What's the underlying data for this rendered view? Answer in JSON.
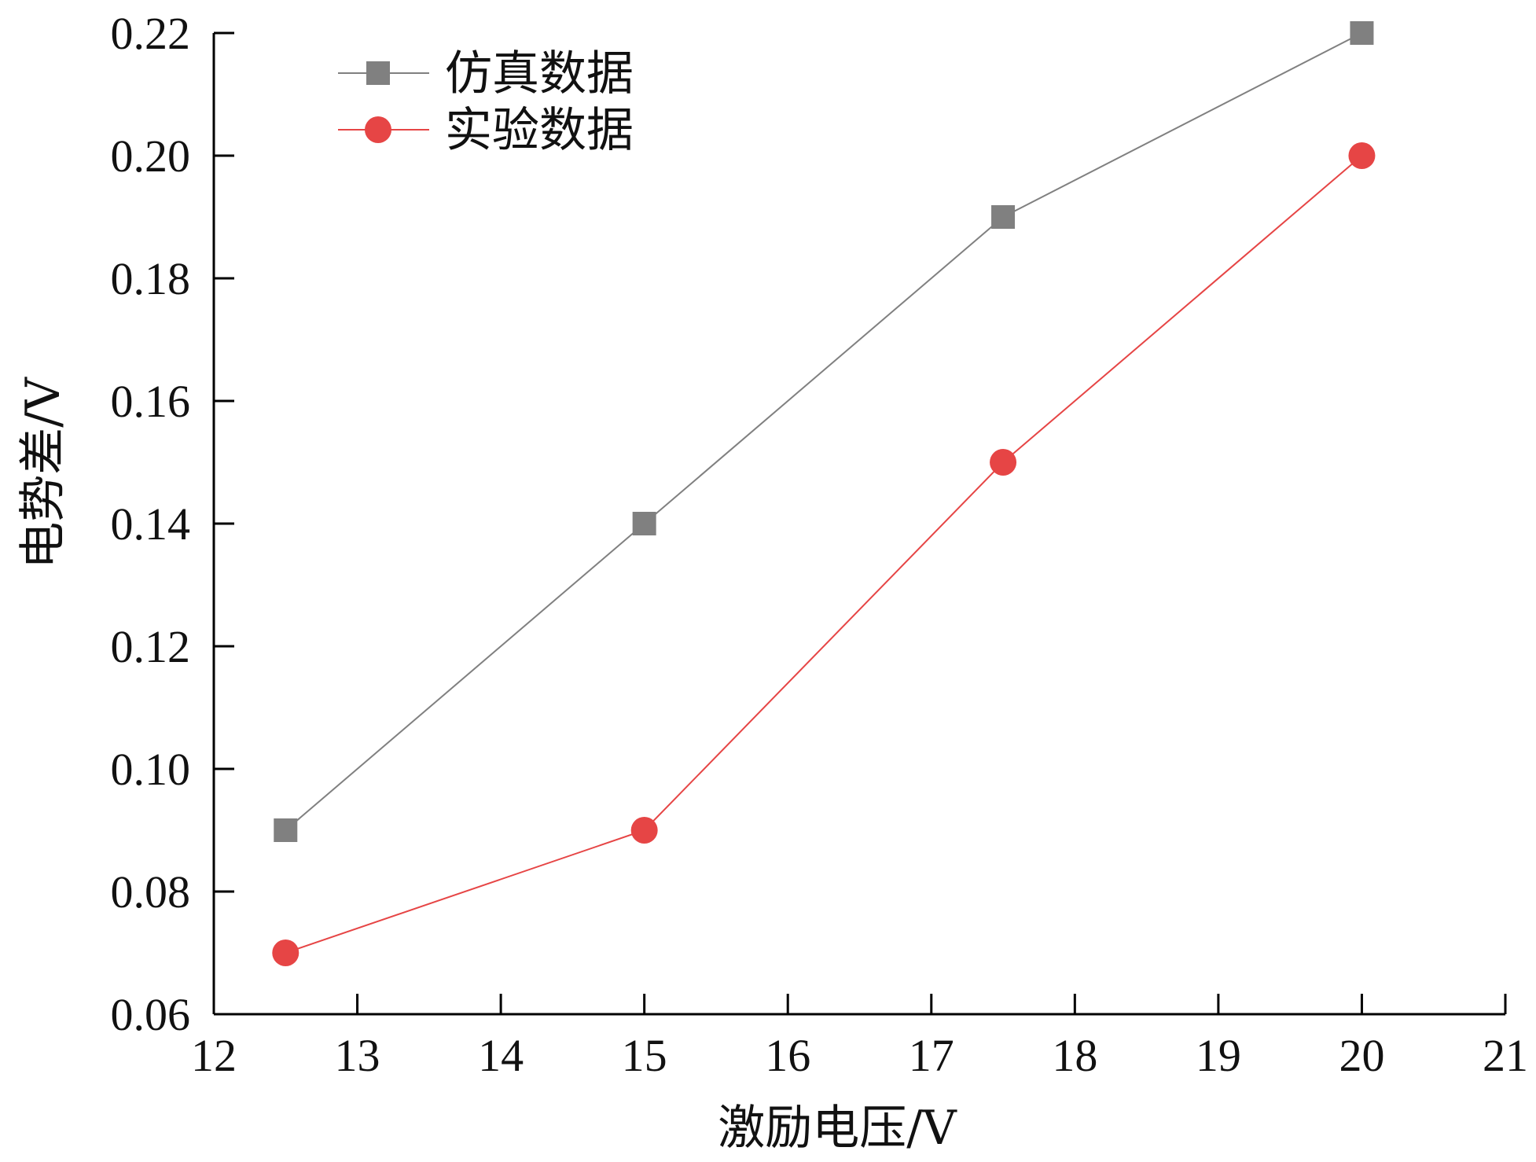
{
  "chart_data": {
    "type": "line",
    "title": "",
    "xlabel": "激励电压/V",
    "ylabel": "电势差/V",
    "xlim": [
      12,
      21
    ],
    "ylim": [
      0.06,
      0.22
    ],
    "xticks": [
      12,
      13,
      14,
      15,
      16,
      17,
      18,
      19,
      20,
      21
    ],
    "xtick_labels": [
      "12",
      "13",
      "14",
      "15",
      "16",
      "17",
      "18",
      "19",
      "20",
      "21"
    ],
    "yticks": [
      0.06,
      0.08,
      0.1,
      0.12,
      0.14,
      0.16,
      0.18,
      0.2,
      0.22
    ],
    "ytick_labels": [
      "0.06",
      "0.08",
      "0.10",
      "0.12",
      "0.14",
      "0.16",
      "0.18",
      "0.20",
      "0.22"
    ],
    "grid": false,
    "legend_position": "top-left",
    "x": [
      12.5,
      15,
      17.5,
      20
    ],
    "series": [
      {
        "name": "仿真数据",
        "marker": "square",
        "color": "#808080",
        "values": [
          0.09,
          0.14,
          0.19,
          0.22
        ]
      },
      {
        "name": "实验数据",
        "marker": "circle",
        "color": "#e64545",
        "values": [
          0.07,
          0.09,
          0.15,
          0.2
        ]
      }
    ]
  }
}
